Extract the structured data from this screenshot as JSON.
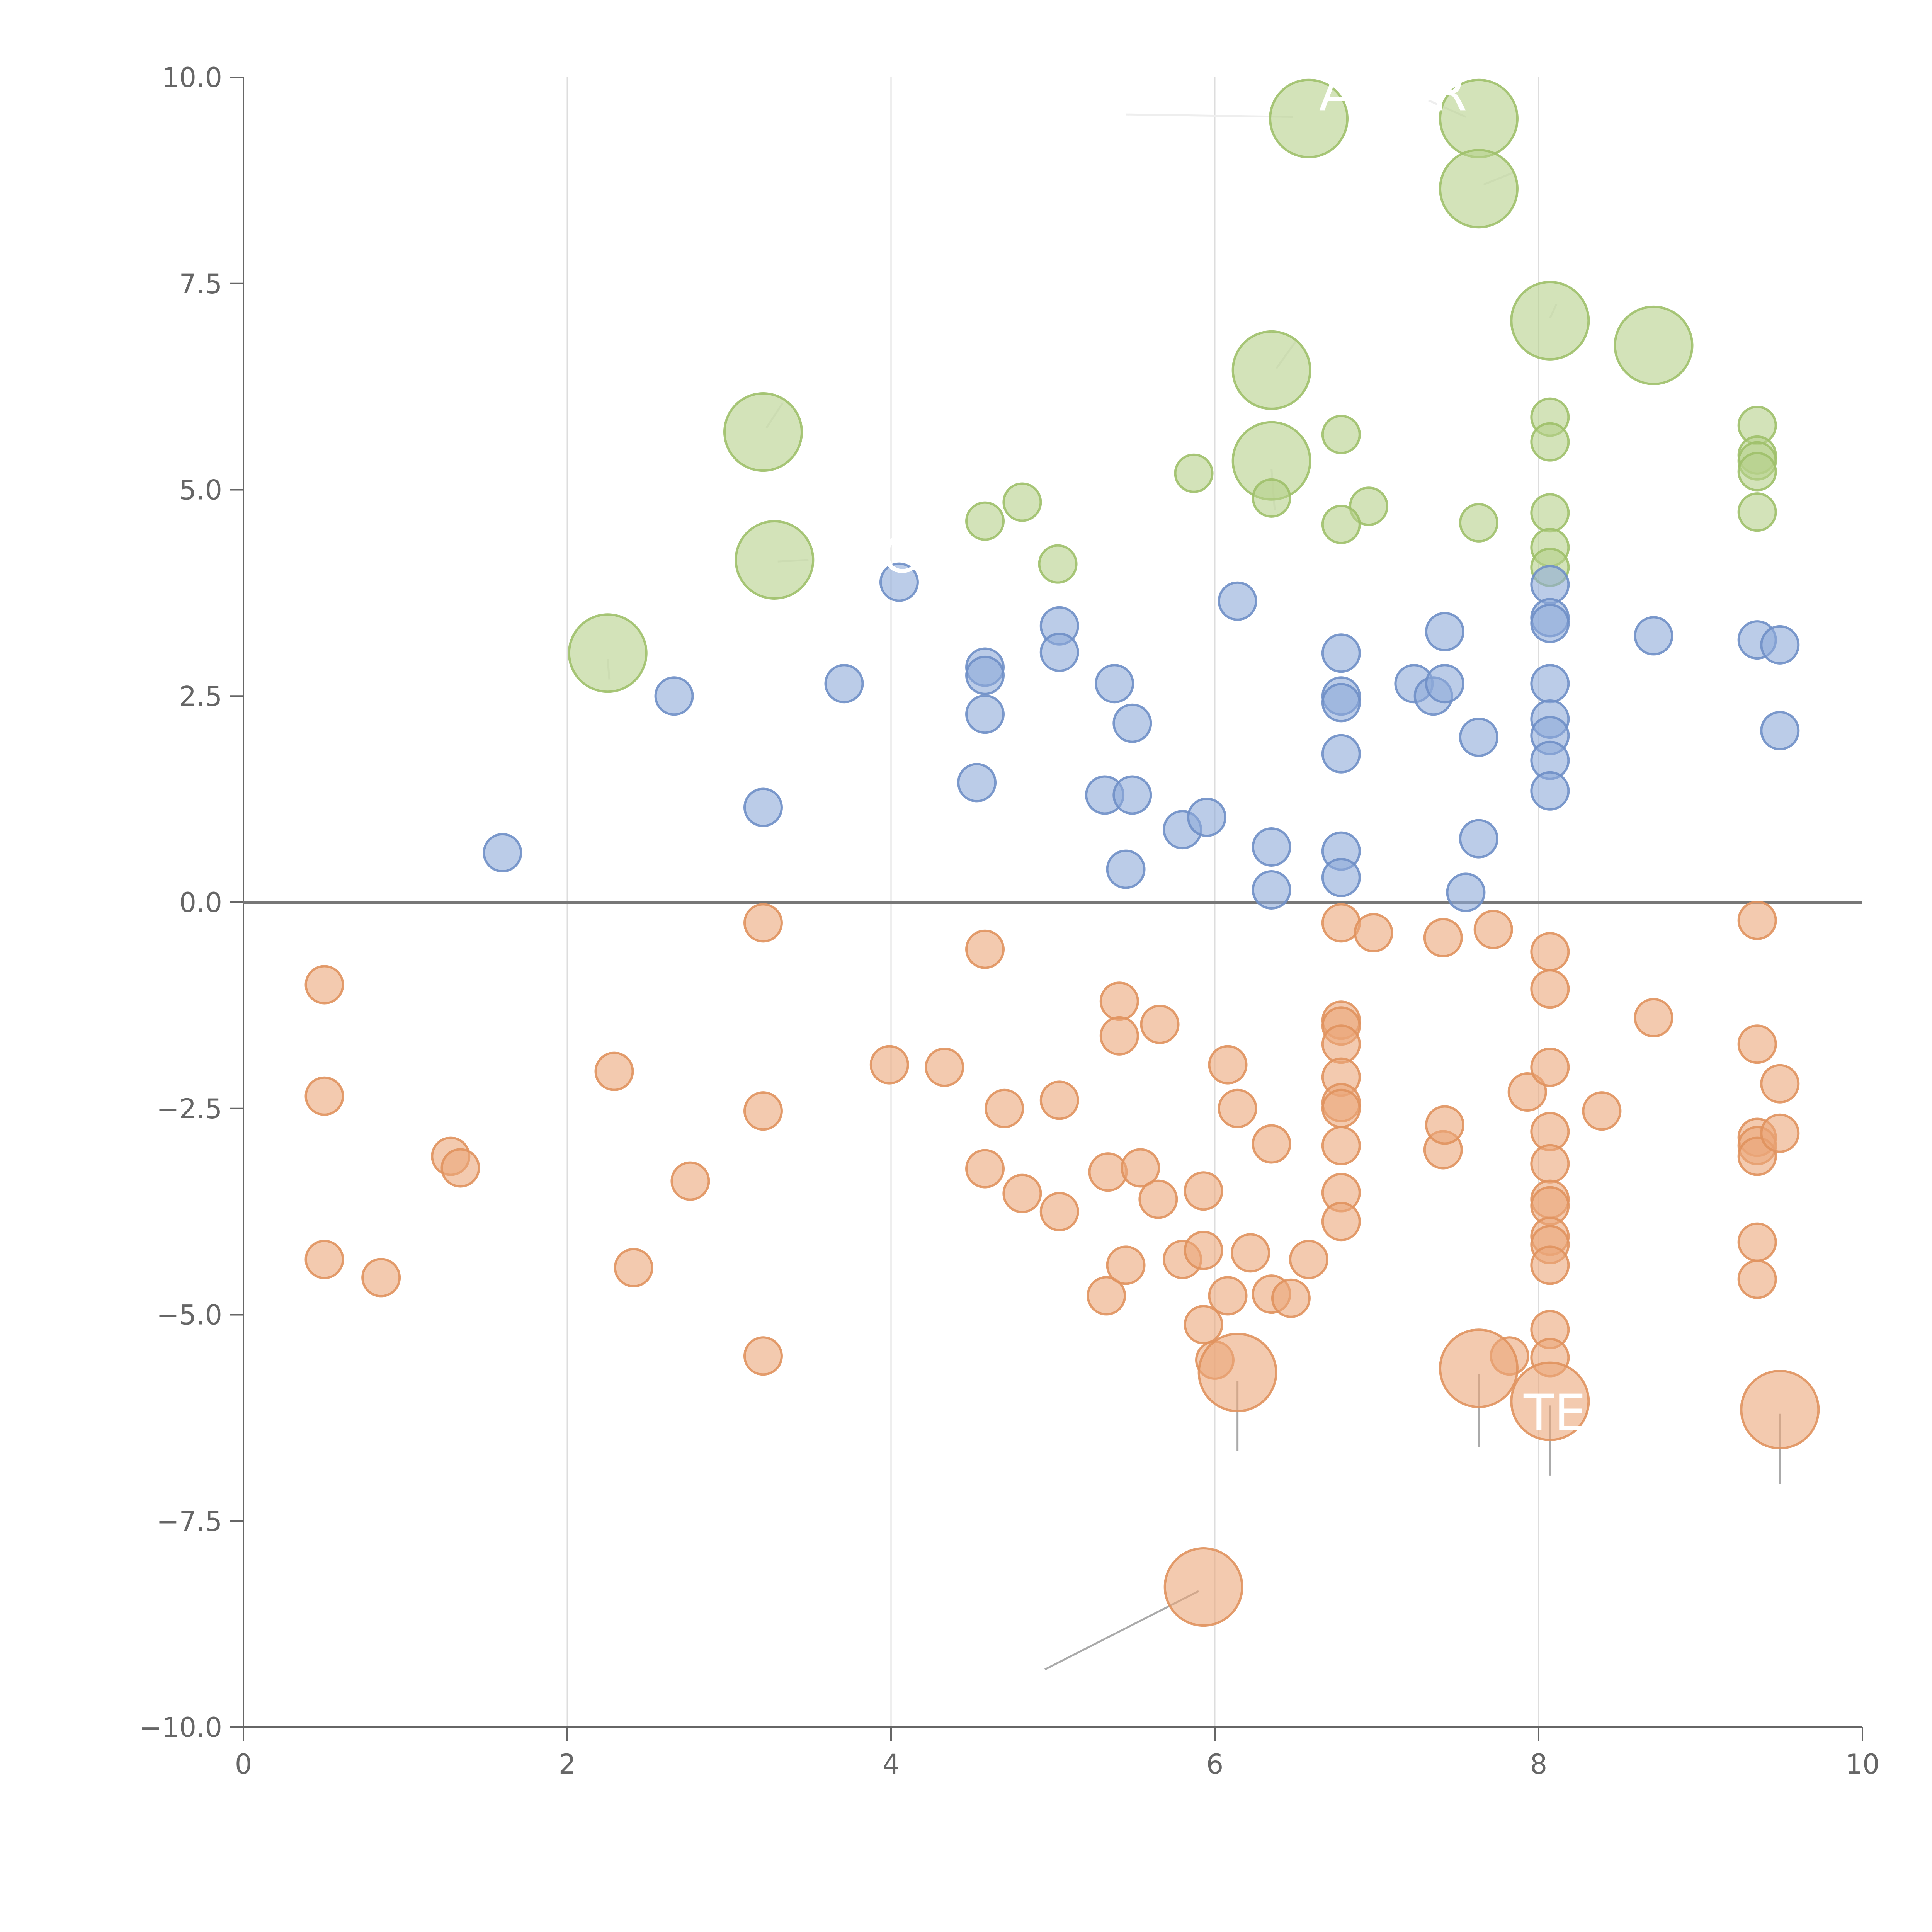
{
  "chart_data": {
    "type": "scatter",
    "title": "",
    "xlabel": "",
    "ylabel": "",
    "xlim": [
      0,
      10
    ],
    "ylim": [
      -10,
      10
    ],
    "grid": "vertical",
    "zero_line": true,
    "x_ticks": [
      0,
      2,
      4,
      6,
      8,
      10
    ],
    "x_tick_labels": [
      "0",
      "2",
      "4",
      "6",
      "8",
      "10"
    ],
    "y_ticks": [
      10,
      7.5,
      5,
      2.5,
      0,
      -2.5,
      -5,
      -7.5,
      -10
    ],
    "y_tick_labels": [
      "10.0",
      "7.5",
      "5.0",
      "2.5",
      "0.0",
      "−2.5",
      "−5.0",
      "−7.5",
      "−10.0"
    ],
    "colors": {
      "green_fill": "#b5d08a",
      "green_stroke": "#9fc06a",
      "blue_fill": "#8eaad8",
      "blue_stroke": "#6f8fc6",
      "orange_fill": "#eba679",
      "orange_stroke": "#e0925e",
      "leader_light": "#eeeeee",
      "leader_dark": "#aaaaaa"
    },
    "series": [
      {
        "name": "green",
        "fill": "#b5d08a",
        "stroke": "#9fc06a",
        "points": [
          [
            6.58,
            9.5,
            3
          ],
          [
            7.63,
            9.5,
            3
          ],
          [
            7.63,
            8.65,
            3
          ],
          [
            8.07,
            7.05,
            3
          ],
          [
            8.71,
            6.75,
            3
          ],
          [
            6.35,
            6.45,
            3
          ],
          [
            3.21,
            5.7,
            3
          ],
          [
            6.35,
            5.35,
            3
          ],
          [
            3.28,
            4.15,
            3
          ],
          [
            2.25,
            3.02,
            3
          ],
          [
            6.78,
            5.67,
            1
          ],
          [
            5.87,
            5.2,
            1
          ],
          [
            6.35,
            4.9,
            1
          ],
          [
            4.81,
            4.85,
            1
          ],
          [
            6.95,
            4.8,
            1
          ],
          [
            4.58,
            4.62,
            1
          ],
          [
            6.78,
            4.58,
            1
          ],
          [
            7.63,
            4.6,
            1
          ],
          [
            5.03,
            4.1,
            1
          ],
          [
            8.07,
            5.88,
            1
          ],
          [
            8.07,
            5.58,
            1
          ],
          [
            8.07,
            4.72,
            1
          ],
          [
            8.07,
            4.3,
            1
          ],
          [
            8.07,
            4.06,
            1
          ],
          [
            9.35,
            5.78,
            1
          ],
          [
            9.35,
            5.42,
            1
          ],
          [
            9.35,
            5.35,
            1
          ],
          [
            9.35,
            5.22,
            1
          ],
          [
            9.35,
            4.73,
            1
          ]
        ]
      },
      {
        "name": "blue",
        "fill": "#8eaad8",
        "stroke": "#6f8fc6",
        "points": [
          [
            1.6,
            0.6,
            1
          ],
          [
            2.66,
            2.5,
            1
          ],
          [
            3.21,
            1.15,
            1
          ],
          [
            3.71,
            2.65,
            1
          ],
          [
            4.05,
            3.88,
            1
          ],
          [
            4.58,
            2.85,
            1
          ],
          [
            4.58,
            2.75,
            1
          ],
          [
            4.58,
            2.28,
            1
          ],
          [
            4.53,
            1.45,
            1
          ],
          [
            5.04,
            3.35,
            1
          ],
          [
            5.04,
            3.03,
            1
          ],
          [
            5.38,
            2.65,
            1
          ],
          [
            5.49,
            2.17,
            1
          ],
          [
            5.32,
            1.3,
            1
          ],
          [
            5.49,
            1.3,
            1
          ],
          [
            5.45,
            0.4,
            1
          ],
          [
            5.8,
            0.88,
            1
          ],
          [
            5.95,
            1.03,
            1
          ],
          [
            6.14,
            3.65,
            1
          ],
          [
            6.35,
            0.67,
            1
          ],
          [
            6.35,
            0.15,
            1
          ],
          [
            6.78,
            3.02,
            1
          ],
          [
            6.78,
            2.5,
            1
          ],
          [
            6.78,
            2.42,
            1
          ],
          [
            6.78,
            1.8,
            1
          ],
          [
            6.78,
            0.62,
            1
          ],
          [
            6.78,
            0.3,
            1
          ],
          [
            7.23,
            2.65,
            1
          ],
          [
            7.35,
            2.5,
            1
          ],
          [
            7.42,
            3.28,
            1
          ],
          [
            7.42,
            2.65,
            1
          ],
          [
            7.63,
            2.0,
            1
          ],
          [
            7.63,
            0.77,
            1
          ],
          [
            7.55,
            0.12,
            1
          ],
          [
            8.07,
            3.85,
            1
          ],
          [
            8.07,
            3.45,
            1
          ],
          [
            8.07,
            3.38,
            1
          ],
          [
            8.07,
            2.65,
            1
          ],
          [
            8.07,
            2.22,
            1
          ],
          [
            8.07,
            2.02,
            1
          ],
          [
            8.07,
            1.72,
            1
          ],
          [
            8.07,
            1.35,
            1
          ],
          [
            8.71,
            3.23,
            1
          ],
          [
            9.35,
            3.18,
            1
          ],
          [
            9.49,
            3.12,
            1
          ],
          [
            9.49,
            2.08,
            1
          ]
        ]
      },
      {
        "name": "orange",
        "fill": "#eba679",
        "stroke": "#e0925e",
        "points": [
          [
            0.5,
            -1.0,
            1
          ],
          [
            0.5,
            -2.35,
            1
          ],
          [
            0.5,
            -4.33,
            1
          ],
          [
            0.85,
            -4.55,
            1
          ],
          [
            1.28,
            -3.08,
            1
          ],
          [
            1.34,
            -3.22,
            1
          ],
          [
            2.29,
            -2.05,
            1
          ],
          [
            2.41,
            -4.43,
            1
          ],
          [
            2.76,
            -3.38,
            1
          ],
          [
            3.21,
            -0.25,
            1
          ],
          [
            3.21,
            -2.53,
            1
          ],
          [
            3.21,
            -5.5,
            1
          ],
          [
            3.99,
            -1.97,
            1
          ],
          [
            4.33,
            -2.0,
            1
          ],
          [
            4.58,
            -0.57,
            1
          ],
          [
            4.58,
            -3.23,
            1
          ],
          [
            4.7,
            -2.5,
            1
          ],
          [
            4.81,
            -3.53,
            1
          ],
          [
            5.04,
            -2.4,
            1
          ],
          [
            5.04,
            -3.75,
            1
          ],
          [
            5.34,
            -3.27,
            1
          ],
          [
            5.33,
            -4.77,
            1
          ],
          [
            5.41,
            -1.2,
            1
          ],
          [
            5.41,
            -1.62,
            1
          ],
          [
            5.45,
            -4.4,
            1
          ],
          [
            5.54,
            -3.22,
            1
          ],
          [
            5.65,
            -3.6,
            1
          ],
          [
            5.66,
            -1.48,
            1
          ],
          [
            5.8,
            -4.33,
            1
          ],
          [
            5.93,
            -3.5,
            1
          ],
          [
            5.93,
            -4.22,
            1
          ],
          [
            5.93,
            -5.12,
            1
          ],
          [
            6.0,
            -5.55,
            1
          ],
          [
            6.08,
            -1.97,
            1
          ],
          [
            6.08,
            -4.77,
            1
          ],
          [
            6.14,
            -2.5,
            1
          ],
          [
            6.22,
            -4.25,
            1
          ],
          [
            6.35,
            -2.93,
            1
          ],
          [
            6.35,
            -4.75,
            1
          ],
          [
            6.47,
            -4.8,
            1
          ],
          [
            6.58,
            -4.33,
            1
          ],
          [
            6.78,
            -0.25,
            1
          ],
          [
            6.78,
            -1.43,
            1
          ],
          [
            6.78,
            -1.5,
            1
          ],
          [
            6.78,
            -1.72,
            1
          ],
          [
            6.78,
            -2.12,
            1
          ],
          [
            6.78,
            -2.43,
            1
          ],
          [
            6.78,
            -2.5,
            1
          ],
          [
            6.78,
            -2.95,
            1
          ],
          [
            6.78,
            -3.52,
            1
          ],
          [
            6.78,
            -3.87,
            1
          ],
          [
            6.98,
            -0.37,
            1
          ],
          [
            7.41,
            -0.43,
            1
          ],
          [
            7.41,
            -3.0,
            1
          ],
          [
            7.42,
            -2.7,
            1
          ],
          [
            7.72,
            -0.33,
            1
          ],
          [
            7.82,
            -5.5,
            1
          ],
          [
            7.93,
            -2.3,
            1
          ],
          [
            8.07,
            -0.6,
            1
          ],
          [
            8.07,
            -1.05,
            1
          ],
          [
            8.07,
            -2.0,
            1
          ],
          [
            8.07,
            -2.78,
            1
          ],
          [
            8.07,
            -3.17,
            1
          ],
          [
            8.07,
            -3.6,
            1
          ],
          [
            8.07,
            -3.68,
            1
          ],
          [
            8.07,
            -4.05,
            1
          ],
          [
            8.07,
            -4.15,
            1
          ],
          [
            8.07,
            -4.4,
            1
          ],
          [
            8.07,
            -5.18,
            1
          ],
          [
            8.07,
            -5.52,
            1
          ],
          [
            8.39,
            -2.53,
            1
          ],
          [
            8.71,
            -1.4,
            1
          ],
          [
            9.35,
            -0.22,
            1
          ],
          [
            9.35,
            -1.72,
            1
          ],
          [
            9.35,
            -2.85,
            1
          ],
          [
            9.35,
            -2.95,
            1
          ],
          [
            9.35,
            -3.08,
            1
          ],
          [
            9.35,
            -4.12,
            1
          ],
          [
            9.35,
            -4.57,
            1
          ],
          [
            9.49,
            -2.2,
            1
          ],
          [
            9.49,
            -2.8,
            1
          ],
          [
            6.14,
            -5.7,
            3
          ],
          [
            7.63,
            -5.65,
            3
          ],
          [
            8.07,
            -6.05,
            3
          ],
          [
            9.49,
            -6.15,
            3
          ],
          [
            5.93,
            -8.3,
            3
          ]
        ]
      }
    ],
    "annotations": [
      {
        "text": "A",
        "x": 6.75,
        "y": 9.6,
        "anchor": [
          6.58,
          9.5
        ]
      },
      {
        "text": "R",
        "x": 7.45,
        "y": 9.6,
        "anchor": [
          7.63,
          9.5
        ]
      },
      {
        "text": "C",
        "x": 4.05,
        "y": 4.0,
        "anchor": [
          3.28,
          4.15
        ]
      },
      {
        "text": "TE",
        "x": 8.1,
        "y": -6.4,
        "anchor": [
          8.07,
          -6.05
        ]
      }
    ],
    "leader_lines": [
      {
        "from": [
          5.45,
          9.55
        ],
        "to": [
          6.48,
          9.52
        ],
        "color": "leader_light"
      },
      {
        "from": [
          7.32,
          9.72
        ],
        "to": [
          7.55,
          9.52
        ],
        "color": "leader_light"
      },
      {
        "from": [
          7.85,
          8.85
        ],
        "to": [
          7.66,
          8.7
        ],
        "color": "leader_light"
      },
      {
        "from": [
          8.11,
          7.25
        ],
        "to": [
          8.07,
          7.08
        ],
        "color": "leader_light"
      },
      {
        "from": [
          6.5,
          6.8
        ],
        "to": [
          6.38,
          6.47
        ],
        "color": "leader_light"
      },
      {
        "from": [
          3.33,
          6.05
        ],
        "to": [
          3.23,
          5.75
        ],
        "color": "leader_light"
      },
      {
        "from": [
          6.37,
          4.75
        ],
        "to": [
          6.35,
          5.25
        ],
        "color": "leader_light"
      },
      {
        "from": [
          3.3,
          4.13
        ],
        "to": [
          3.49,
          4.15
        ],
        "color": "leader_light"
      },
      {
        "from": [
          2.26,
          2.7
        ],
        "to": [
          2.25,
          2.95
        ],
        "color": "leader_light"
      },
      {
        "from": [
          6.14,
          -5.8
        ],
        "to": [
          6.14,
          -6.65
        ],
        "color": "leader_dark"
      },
      {
        "from": [
          7.63,
          -5.72
        ],
        "to": [
          7.63,
          -6.6
        ],
        "color": "leader_dark"
      },
      {
        "from": [
          8.07,
          -6.1
        ],
        "to": [
          8.07,
          -6.95
        ],
        "color": "leader_dark"
      },
      {
        "from": [
          9.49,
          -6.2
        ],
        "to": [
          9.49,
          -7.05
        ],
        "color": "leader_dark"
      },
      {
        "from": [
          5.9,
          -8.35
        ],
        "to": [
          4.95,
          -9.3
        ],
        "color": "leader_dark"
      }
    ]
  }
}
